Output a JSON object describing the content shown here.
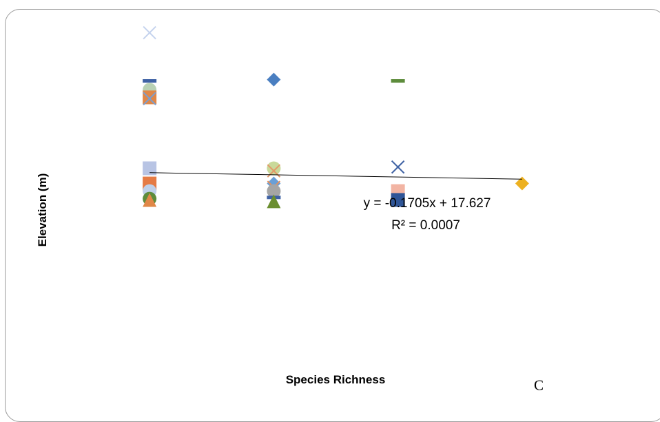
{
  "chart_data": {
    "type": "scatter",
    "title": "",
    "xlabel": "Species Richness",
    "ylabel": "Elevation (m)",
    "xlim": [
      0.5,
      4.5
    ],
    "ylim": [
      5,
      30
    ],
    "grid": false,
    "legend": "none",
    "panel_label": "C",
    "trendline": {
      "type": "linear",
      "slope": -0.1705,
      "intercept": 17.627,
      "x_range": [
        1,
        4
      ],
      "equation_label": "y = -0.1705x + 17.627",
      "r2_label": "R² = 0.0007"
    },
    "points": [
      {
        "x": 1,
        "y": 28.5,
        "marker": "x",
        "color": "#c5d3ee"
      },
      {
        "x": 1,
        "y": 24.7,
        "marker": "dash",
        "color": "#3f62a4"
      },
      {
        "x": 1,
        "y": 24.0,
        "marker": "circle",
        "color": "#b9d1b4"
      },
      {
        "x": 1,
        "y": 23.4,
        "marker": "square",
        "color": "#e08747"
      },
      {
        "x": 1,
        "y": 23.3,
        "marker": "x",
        "color": "#7a9fd2"
      },
      {
        "x": 1,
        "y": 17.8,
        "marker": "square",
        "color": "#b8c4e4"
      },
      {
        "x": 1,
        "y": 16.6,
        "marker": "square",
        "color": "#e57b45"
      },
      {
        "x": 1,
        "y": 16.0,
        "marker": "circle",
        "color": "#bfd0ea"
      },
      {
        "x": 1,
        "y": 15.4,
        "marker": "circle",
        "color": "#5d8c3c"
      },
      {
        "x": 1,
        "y": 15.3,
        "marker": "triangle",
        "color": "#e08747"
      },
      {
        "x": 2,
        "y": 24.8,
        "marker": "diamond",
        "color": "#4a7fc1"
      },
      {
        "x": 2,
        "y": 17.8,
        "marker": "circle",
        "color": "#c9d99a"
      },
      {
        "x": 2,
        "y": 17.6,
        "marker": "x",
        "color": "#e39a69"
      },
      {
        "x": 2,
        "y": 16.6,
        "marker": "diamond",
        "color": "#6a9fd6"
      },
      {
        "x": 2,
        "y": 16.3,
        "marker": "x",
        "color": "#e6905a"
      },
      {
        "x": 2,
        "y": 16.0,
        "marker": "circle",
        "color": "#a5a5a5"
      },
      {
        "x": 2,
        "y": 15.5,
        "marker": "dash",
        "color": "#3f62a4"
      },
      {
        "x": 2,
        "y": 15.2,
        "marker": "triangle",
        "color": "#6b8e2f"
      },
      {
        "x": 3,
        "y": 24.7,
        "marker": "dash",
        "color": "#5d8c3c"
      },
      {
        "x": 3,
        "y": 17.9,
        "marker": "x",
        "color": "#3f62a4"
      },
      {
        "x": 3,
        "y": 16.0,
        "marker": "square",
        "color": "#f2b4a3"
      },
      {
        "x": 3,
        "y": 15.3,
        "marker": "square",
        "color": "#2f5597"
      },
      {
        "x": 4,
        "y": 16.6,
        "marker": "diamond",
        "color": "#edb120"
      }
    ]
  }
}
